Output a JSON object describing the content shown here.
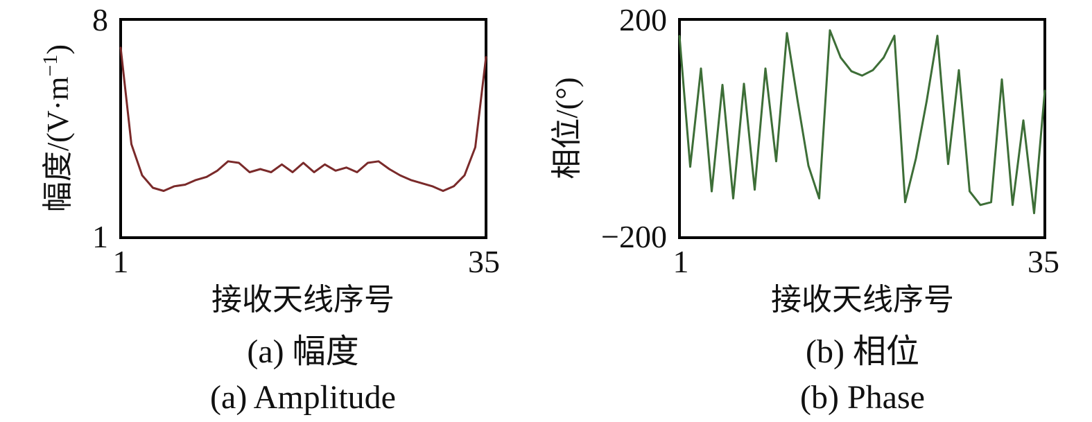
{
  "chart_data": [
    {
      "type": "line",
      "caption_zh": "(a) 幅度",
      "caption_en": "(a) Amplitude",
      "xlabel": "接收天线序号",
      "ylabel": "幅度/(V·m",
      "ylabel_sup": "−1",
      "ylabel_close": ")",
      "xlim": [
        1,
        35
      ],
      "ylim": [
        1,
        8
      ],
      "xticks": [
        "1",
        "35"
      ],
      "yticks": [
        "1",
        "8"
      ],
      "color": "#7a2a2a",
      "series": [
        {
          "x": [
            1,
            2,
            3,
            4,
            5,
            6,
            7,
            8,
            9,
            10,
            11,
            12,
            13,
            14,
            15,
            16,
            17,
            18,
            19,
            20,
            21,
            22,
            23,
            24,
            25,
            26,
            27,
            28,
            29,
            30,
            31,
            32,
            33,
            34,
            35
          ],
          "values": [
            7.1,
            4.0,
            3.0,
            2.6,
            2.5,
            2.65,
            2.7,
            2.85,
            2.95,
            3.15,
            3.45,
            3.4,
            3.1,
            3.2,
            3.1,
            3.35,
            3.1,
            3.4,
            3.1,
            3.35,
            3.15,
            3.25,
            3.1,
            3.4,
            3.45,
            3.2,
            3.0,
            2.85,
            2.75,
            2.65,
            2.5,
            2.65,
            3.0,
            3.9,
            6.8
          ]
        }
      ]
    },
    {
      "type": "line",
      "caption_zh": "(b) 相位",
      "caption_en": "(b) Phase",
      "xlabel": "接收天线序号",
      "ylabel": "相位/(°)",
      "xlim": [
        1,
        35
      ],
      "ylim": [
        -200,
        200
      ],
      "xticks": [
        "1",
        "35"
      ],
      "yticks": [
        "−200",
        "200"
      ],
      "color": "#3d6e37",
      "series": [
        {
          "x": [
            1,
            2,
            3,
            4,
            5,
            6,
            7,
            8,
            9,
            10,
            11,
            12,
            13,
            14,
            15,
            16,
            17,
            18,
            19,
            20,
            21,
            22,
            23,
            24,
            25,
            26,
            27,
            28,
            29,
            30,
            31,
            32,
            33,
            34,
            35
          ],
          "values": [
            170,
            -70,
            110,
            -115,
            80,
            -128,
            82,
            -112,
            110,
            -60,
            175,
            50,
            -68,
            -128,
            180,
            130,
            105,
            97,
            107,
            130,
            170,
            -135,
            -55,
            50,
            170,
            -65,
            107,
            -115,
            -140,
            -135,
            90,
            -140,
            15,
            -155,
            70
          ]
        }
      ]
    }
  ]
}
